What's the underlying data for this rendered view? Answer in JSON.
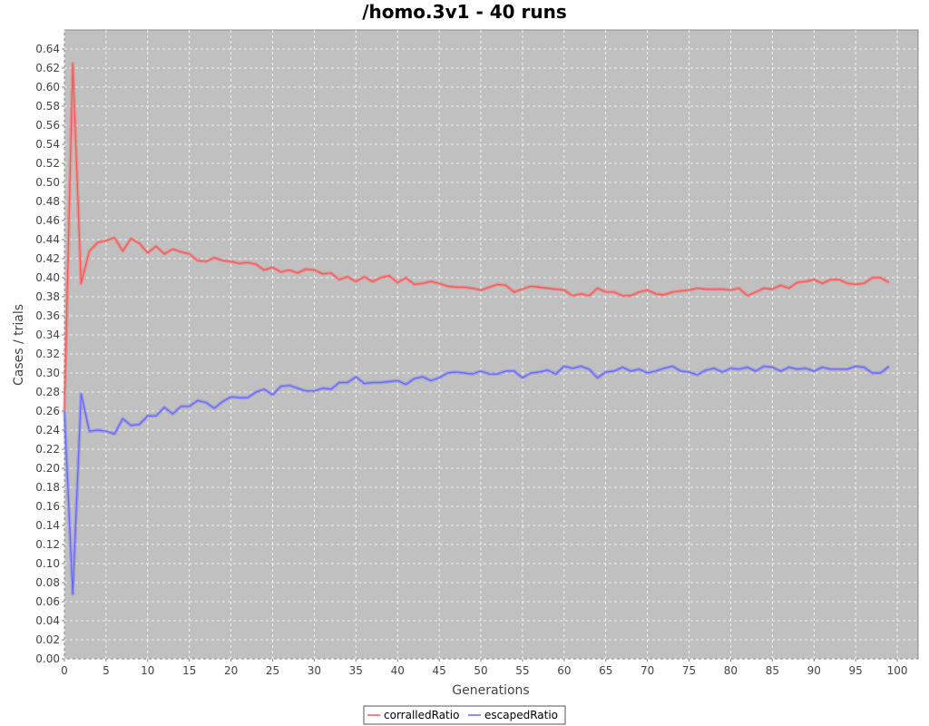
{
  "chart_data": {
    "type": "line",
    "title": "/homo.3v1 - 40 runs",
    "xlabel": "Generations",
    "ylabel": "Cases / trials",
    "xlim": [
      0,
      102.5
    ],
    "ylim": [
      0,
      0.66
    ],
    "x_ticks": [
      0,
      5,
      10,
      15,
      20,
      25,
      30,
      35,
      40,
      45,
      50,
      55,
      60,
      65,
      70,
      75,
      80,
      85,
      90,
      95,
      100
    ],
    "y_ticks": [
      0.0,
      0.02,
      0.04,
      0.06,
      0.08,
      0.1,
      0.12,
      0.14,
      0.16,
      0.18,
      0.2,
      0.22,
      0.24,
      0.26,
      0.28,
      0.3,
      0.32,
      0.34,
      0.36,
      0.38,
      0.4,
      0.42,
      0.44,
      0.46,
      0.48,
      0.5,
      0.52,
      0.54,
      0.56,
      0.58,
      0.6,
      0.62,
      0.64
    ],
    "grid": true,
    "legend_position": "bottom",
    "plot_background": "#c0c0c0",
    "series": [
      {
        "name": "corralledRatio",
        "color": "#ff5555",
        "x": [
          0,
          1,
          2,
          3,
          4,
          5,
          6,
          7,
          8,
          9,
          10,
          11,
          12,
          13,
          14,
          15,
          16,
          17,
          18,
          19,
          20,
          21,
          22,
          23,
          24,
          25,
          26,
          27,
          28,
          29,
          30,
          31,
          32,
          33,
          34,
          35,
          36,
          37,
          38,
          39,
          40,
          41,
          42,
          43,
          44,
          45,
          46,
          47,
          48,
          49,
          50,
          51,
          52,
          53,
          54,
          55,
          56,
          57,
          58,
          59,
          60,
          61,
          62,
          63,
          64,
          65,
          66,
          67,
          68,
          69,
          70,
          71,
          72,
          73,
          74,
          75,
          76,
          77,
          78,
          79,
          80,
          81,
          82,
          83,
          84,
          85,
          86,
          87,
          88,
          89,
          90,
          91,
          92,
          93,
          94,
          95,
          96,
          97,
          98,
          99
        ],
        "values": [
          0.26,
          0.625,
          0.394,
          0.428,
          0.437,
          0.439,
          0.442,
          0.428,
          0.441,
          0.436,
          0.426,
          0.433,
          0.425,
          0.43,
          0.427,
          0.425,
          0.418,
          0.417,
          0.421,
          0.418,
          0.417,
          0.415,
          0.416,
          0.414,
          0.408,
          0.411,
          0.406,
          0.408,
          0.405,
          0.409,
          0.408,
          0.404,
          0.405,
          0.398,
          0.401,
          0.396,
          0.401,
          0.396,
          0.4,
          0.402,
          0.395,
          0.4,
          0.393,
          0.394,
          0.396,
          0.394,
          0.391,
          0.39,
          0.39,
          0.389,
          0.387,
          0.39,
          0.393,
          0.392,
          0.385,
          0.388,
          0.391,
          0.39,
          0.389,
          0.388,
          0.387,
          0.381,
          0.383,
          0.381,
          0.389,
          0.385,
          0.385,
          0.381,
          0.381,
          0.385,
          0.387,
          0.383,
          0.382,
          0.385,
          0.386,
          0.387,
          0.389,
          0.388,
          0.388,
          0.388,
          0.387,
          0.389,
          0.381,
          0.385,
          0.389,
          0.388,
          0.392,
          0.389,
          0.395,
          0.396,
          0.398,
          0.394,
          0.398,
          0.398,
          0.394,
          0.393,
          0.394,
          0.4,
          0.4,
          0.395
        ]
      },
      {
        "name": "escapedRatio",
        "color": "#6666ff",
        "x": [
          0,
          1,
          2,
          3,
          4,
          5,
          6,
          7,
          8,
          9,
          10,
          11,
          12,
          13,
          14,
          15,
          16,
          17,
          18,
          19,
          20,
          21,
          22,
          23,
          24,
          25,
          26,
          27,
          28,
          29,
          30,
          31,
          32,
          33,
          34,
          35,
          36,
          37,
          38,
          39,
          40,
          41,
          42,
          43,
          44,
          45,
          46,
          47,
          48,
          49,
          50,
          51,
          52,
          53,
          54,
          55,
          56,
          57,
          58,
          59,
          60,
          61,
          62,
          63,
          64,
          65,
          66,
          67,
          68,
          69,
          70,
          71,
          72,
          73,
          74,
          75,
          76,
          77,
          78,
          79,
          80,
          81,
          82,
          83,
          84,
          85,
          86,
          87,
          88,
          89,
          90,
          91,
          92,
          93,
          94,
          95,
          96,
          97,
          98,
          99
        ],
        "values": [
          0.26,
          0.068,
          0.278,
          0.239,
          0.24,
          0.239,
          0.236,
          0.252,
          0.245,
          0.246,
          0.255,
          0.255,
          0.264,
          0.257,
          0.265,
          0.265,
          0.271,
          0.269,
          0.263,
          0.27,
          0.275,
          0.274,
          0.274,
          0.28,
          0.283,
          0.277,
          0.286,
          0.287,
          0.284,
          0.281,
          0.281,
          0.284,
          0.283,
          0.29,
          0.29,
          0.296,
          0.289,
          0.29,
          0.29,
          0.291,
          0.292,
          0.288,
          0.294,
          0.296,
          0.292,
          0.295,
          0.3,
          0.301,
          0.3,
          0.299,
          0.302,
          0.299,
          0.299,
          0.302,
          0.302,
          0.295,
          0.3,
          0.301,
          0.303,
          0.299,
          0.307,
          0.305,
          0.307,
          0.304,
          0.295,
          0.301,
          0.302,
          0.306,
          0.302,
          0.304,
          0.3,
          0.302,
          0.305,
          0.307,
          0.302,
          0.301,
          0.298,
          0.303,
          0.305,
          0.301,
          0.305,
          0.304,
          0.306,
          0.302,
          0.307,
          0.306,
          0.302,
          0.306,
          0.304,
          0.305,
          0.302,
          0.306,
          0.304,
          0.304,
          0.304,
          0.307,
          0.306,
          0.3,
          0.3,
          0.307
        ]
      }
    ]
  }
}
